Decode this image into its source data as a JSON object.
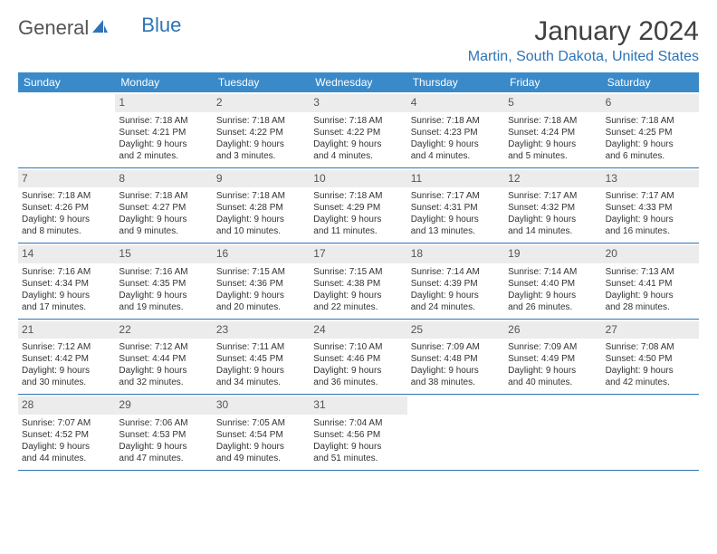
{
  "logo": {
    "part1": "General",
    "part2": "Blue"
  },
  "title": "January 2024",
  "location": "Martin, South Dakota, United States",
  "colors": {
    "header_bg": "#3a8ac9",
    "accent": "#2e74b5",
    "daynum_bg": "#ececec",
    "text": "#333333"
  },
  "day_names": [
    "Sunday",
    "Monday",
    "Tuesday",
    "Wednesday",
    "Thursday",
    "Friday",
    "Saturday"
  ],
  "weeks": [
    [
      {
        "day": "",
        "empty": true
      },
      {
        "day": "1",
        "sunrise": "Sunrise: 7:18 AM",
        "sunset": "Sunset: 4:21 PM",
        "daylight1": "Daylight: 9 hours",
        "daylight2": "and 2 minutes."
      },
      {
        "day": "2",
        "sunrise": "Sunrise: 7:18 AM",
        "sunset": "Sunset: 4:22 PM",
        "daylight1": "Daylight: 9 hours",
        "daylight2": "and 3 minutes."
      },
      {
        "day": "3",
        "sunrise": "Sunrise: 7:18 AM",
        "sunset": "Sunset: 4:22 PM",
        "daylight1": "Daylight: 9 hours",
        "daylight2": "and 4 minutes."
      },
      {
        "day": "4",
        "sunrise": "Sunrise: 7:18 AM",
        "sunset": "Sunset: 4:23 PM",
        "daylight1": "Daylight: 9 hours",
        "daylight2": "and 4 minutes."
      },
      {
        "day": "5",
        "sunrise": "Sunrise: 7:18 AM",
        "sunset": "Sunset: 4:24 PM",
        "daylight1": "Daylight: 9 hours",
        "daylight2": "and 5 minutes."
      },
      {
        "day": "6",
        "sunrise": "Sunrise: 7:18 AM",
        "sunset": "Sunset: 4:25 PM",
        "daylight1": "Daylight: 9 hours",
        "daylight2": "and 6 minutes."
      }
    ],
    [
      {
        "day": "7",
        "sunrise": "Sunrise: 7:18 AM",
        "sunset": "Sunset: 4:26 PM",
        "daylight1": "Daylight: 9 hours",
        "daylight2": "and 8 minutes."
      },
      {
        "day": "8",
        "sunrise": "Sunrise: 7:18 AM",
        "sunset": "Sunset: 4:27 PM",
        "daylight1": "Daylight: 9 hours",
        "daylight2": "and 9 minutes."
      },
      {
        "day": "9",
        "sunrise": "Sunrise: 7:18 AM",
        "sunset": "Sunset: 4:28 PM",
        "daylight1": "Daylight: 9 hours",
        "daylight2": "and 10 minutes."
      },
      {
        "day": "10",
        "sunrise": "Sunrise: 7:18 AM",
        "sunset": "Sunset: 4:29 PM",
        "daylight1": "Daylight: 9 hours",
        "daylight2": "and 11 minutes."
      },
      {
        "day": "11",
        "sunrise": "Sunrise: 7:17 AM",
        "sunset": "Sunset: 4:31 PM",
        "daylight1": "Daylight: 9 hours",
        "daylight2": "and 13 minutes."
      },
      {
        "day": "12",
        "sunrise": "Sunrise: 7:17 AM",
        "sunset": "Sunset: 4:32 PM",
        "daylight1": "Daylight: 9 hours",
        "daylight2": "and 14 minutes."
      },
      {
        "day": "13",
        "sunrise": "Sunrise: 7:17 AM",
        "sunset": "Sunset: 4:33 PM",
        "daylight1": "Daylight: 9 hours",
        "daylight2": "and 16 minutes."
      }
    ],
    [
      {
        "day": "14",
        "sunrise": "Sunrise: 7:16 AM",
        "sunset": "Sunset: 4:34 PM",
        "daylight1": "Daylight: 9 hours",
        "daylight2": "and 17 minutes."
      },
      {
        "day": "15",
        "sunrise": "Sunrise: 7:16 AM",
        "sunset": "Sunset: 4:35 PM",
        "daylight1": "Daylight: 9 hours",
        "daylight2": "and 19 minutes."
      },
      {
        "day": "16",
        "sunrise": "Sunrise: 7:15 AM",
        "sunset": "Sunset: 4:36 PM",
        "daylight1": "Daylight: 9 hours",
        "daylight2": "and 20 minutes."
      },
      {
        "day": "17",
        "sunrise": "Sunrise: 7:15 AM",
        "sunset": "Sunset: 4:38 PM",
        "daylight1": "Daylight: 9 hours",
        "daylight2": "and 22 minutes."
      },
      {
        "day": "18",
        "sunrise": "Sunrise: 7:14 AM",
        "sunset": "Sunset: 4:39 PM",
        "daylight1": "Daylight: 9 hours",
        "daylight2": "and 24 minutes."
      },
      {
        "day": "19",
        "sunrise": "Sunrise: 7:14 AM",
        "sunset": "Sunset: 4:40 PM",
        "daylight1": "Daylight: 9 hours",
        "daylight2": "and 26 minutes."
      },
      {
        "day": "20",
        "sunrise": "Sunrise: 7:13 AM",
        "sunset": "Sunset: 4:41 PM",
        "daylight1": "Daylight: 9 hours",
        "daylight2": "and 28 minutes."
      }
    ],
    [
      {
        "day": "21",
        "sunrise": "Sunrise: 7:12 AM",
        "sunset": "Sunset: 4:42 PM",
        "daylight1": "Daylight: 9 hours",
        "daylight2": "and 30 minutes."
      },
      {
        "day": "22",
        "sunrise": "Sunrise: 7:12 AM",
        "sunset": "Sunset: 4:44 PM",
        "daylight1": "Daylight: 9 hours",
        "daylight2": "and 32 minutes."
      },
      {
        "day": "23",
        "sunrise": "Sunrise: 7:11 AM",
        "sunset": "Sunset: 4:45 PM",
        "daylight1": "Daylight: 9 hours",
        "daylight2": "and 34 minutes."
      },
      {
        "day": "24",
        "sunrise": "Sunrise: 7:10 AM",
        "sunset": "Sunset: 4:46 PM",
        "daylight1": "Daylight: 9 hours",
        "daylight2": "and 36 minutes."
      },
      {
        "day": "25",
        "sunrise": "Sunrise: 7:09 AM",
        "sunset": "Sunset: 4:48 PM",
        "daylight1": "Daylight: 9 hours",
        "daylight2": "and 38 minutes."
      },
      {
        "day": "26",
        "sunrise": "Sunrise: 7:09 AM",
        "sunset": "Sunset: 4:49 PM",
        "daylight1": "Daylight: 9 hours",
        "daylight2": "and 40 minutes."
      },
      {
        "day": "27",
        "sunrise": "Sunrise: 7:08 AM",
        "sunset": "Sunset: 4:50 PM",
        "daylight1": "Daylight: 9 hours",
        "daylight2": "and 42 minutes."
      }
    ],
    [
      {
        "day": "28",
        "sunrise": "Sunrise: 7:07 AM",
        "sunset": "Sunset: 4:52 PM",
        "daylight1": "Daylight: 9 hours",
        "daylight2": "and 44 minutes."
      },
      {
        "day": "29",
        "sunrise": "Sunrise: 7:06 AM",
        "sunset": "Sunset: 4:53 PM",
        "daylight1": "Daylight: 9 hours",
        "daylight2": "and 47 minutes."
      },
      {
        "day": "30",
        "sunrise": "Sunrise: 7:05 AM",
        "sunset": "Sunset: 4:54 PM",
        "daylight1": "Daylight: 9 hours",
        "daylight2": "and 49 minutes."
      },
      {
        "day": "31",
        "sunrise": "Sunrise: 7:04 AM",
        "sunset": "Sunset: 4:56 PM",
        "daylight1": "Daylight: 9 hours",
        "daylight2": "and 51 minutes."
      },
      {
        "day": "",
        "empty": true
      },
      {
        "day": "",
        "empty": true
      },
      {
        "day": "",
        "empty": true
      }
    ]
  ]
}
